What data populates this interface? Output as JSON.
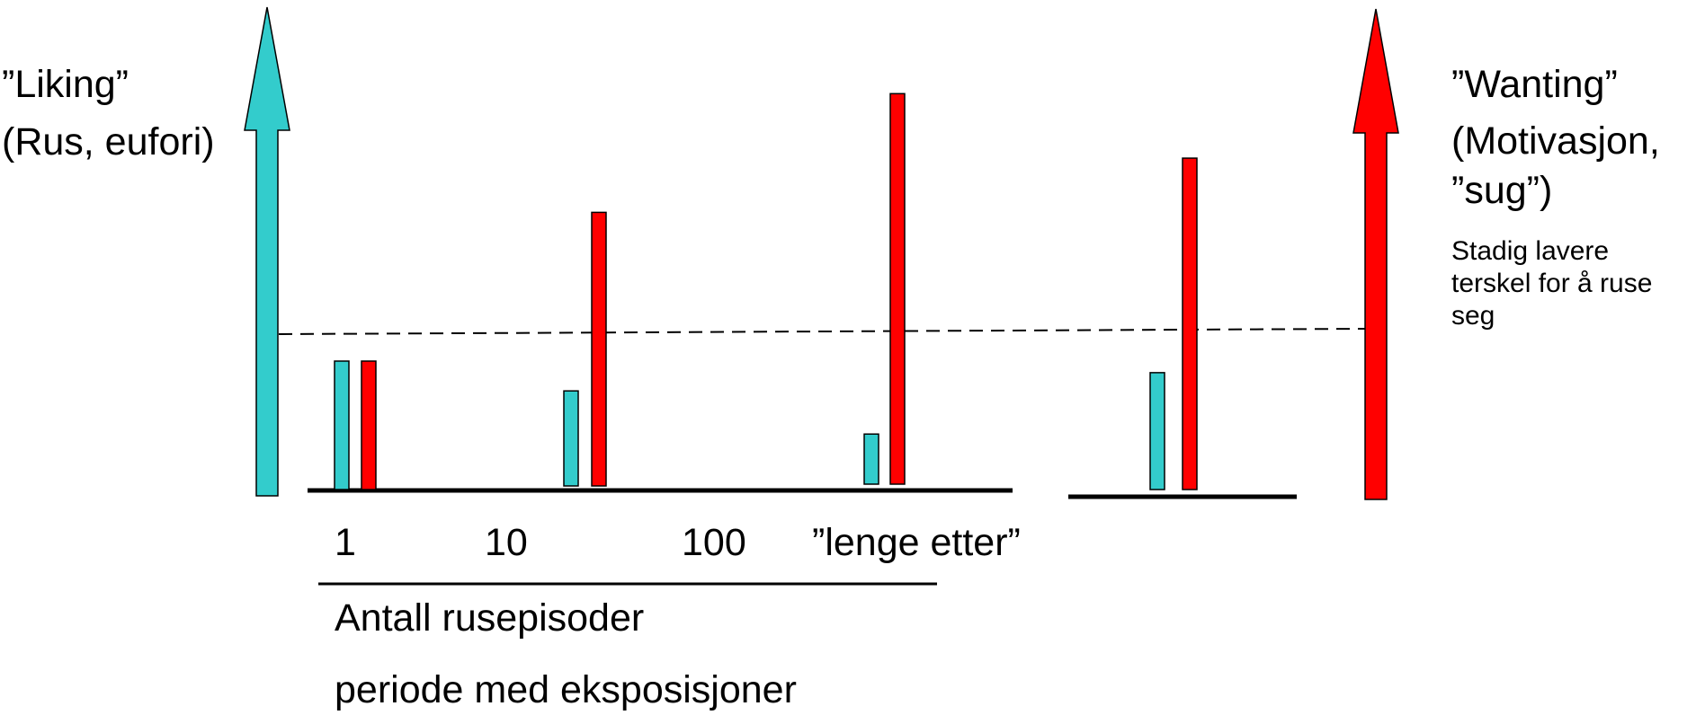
{
  "left_axis": {
    "title": "”Liking”",
    "subtitle": "(Rus, eufori)",
    "color": "#33CCCC"
  },
  "right_axis": {
    "title": "”Wanting”",
    "subtitle_line1": "(Motivasjon,",
    "subtitle_line2": "”sug”)",
    "note": "Stadig lavere\nterskel for å ruse\nseg",
    "color": "#FF0000"
  },
  "x_axis": {
    "ticks": [
      "1",
      "10",
      "100",
      "”lenge etter”"
    ],
    "label": "Antall rusepisoder",
    "label2": "periode med eksposisjoner"
  },
  "chart_data": {
    "type": "bar",
    "categories": [
      "1",
      "10",
      "100",
      "”lenge etter”"
    ],
    "series": [
      {
        "name": "Liking",
        "color": "#33CCCC",
        "values": [
          100,
          74,
          39,
          91
        ]
      },
      {
        "name": "Wanting",
        "color": "#FF0000",
        "values": [
          100,
          213,
          304,
          258
        ]
      }
    ],
    "threshold_line": "dashed",
    "ylim": [
      0,
      320
    ]
  }
}
